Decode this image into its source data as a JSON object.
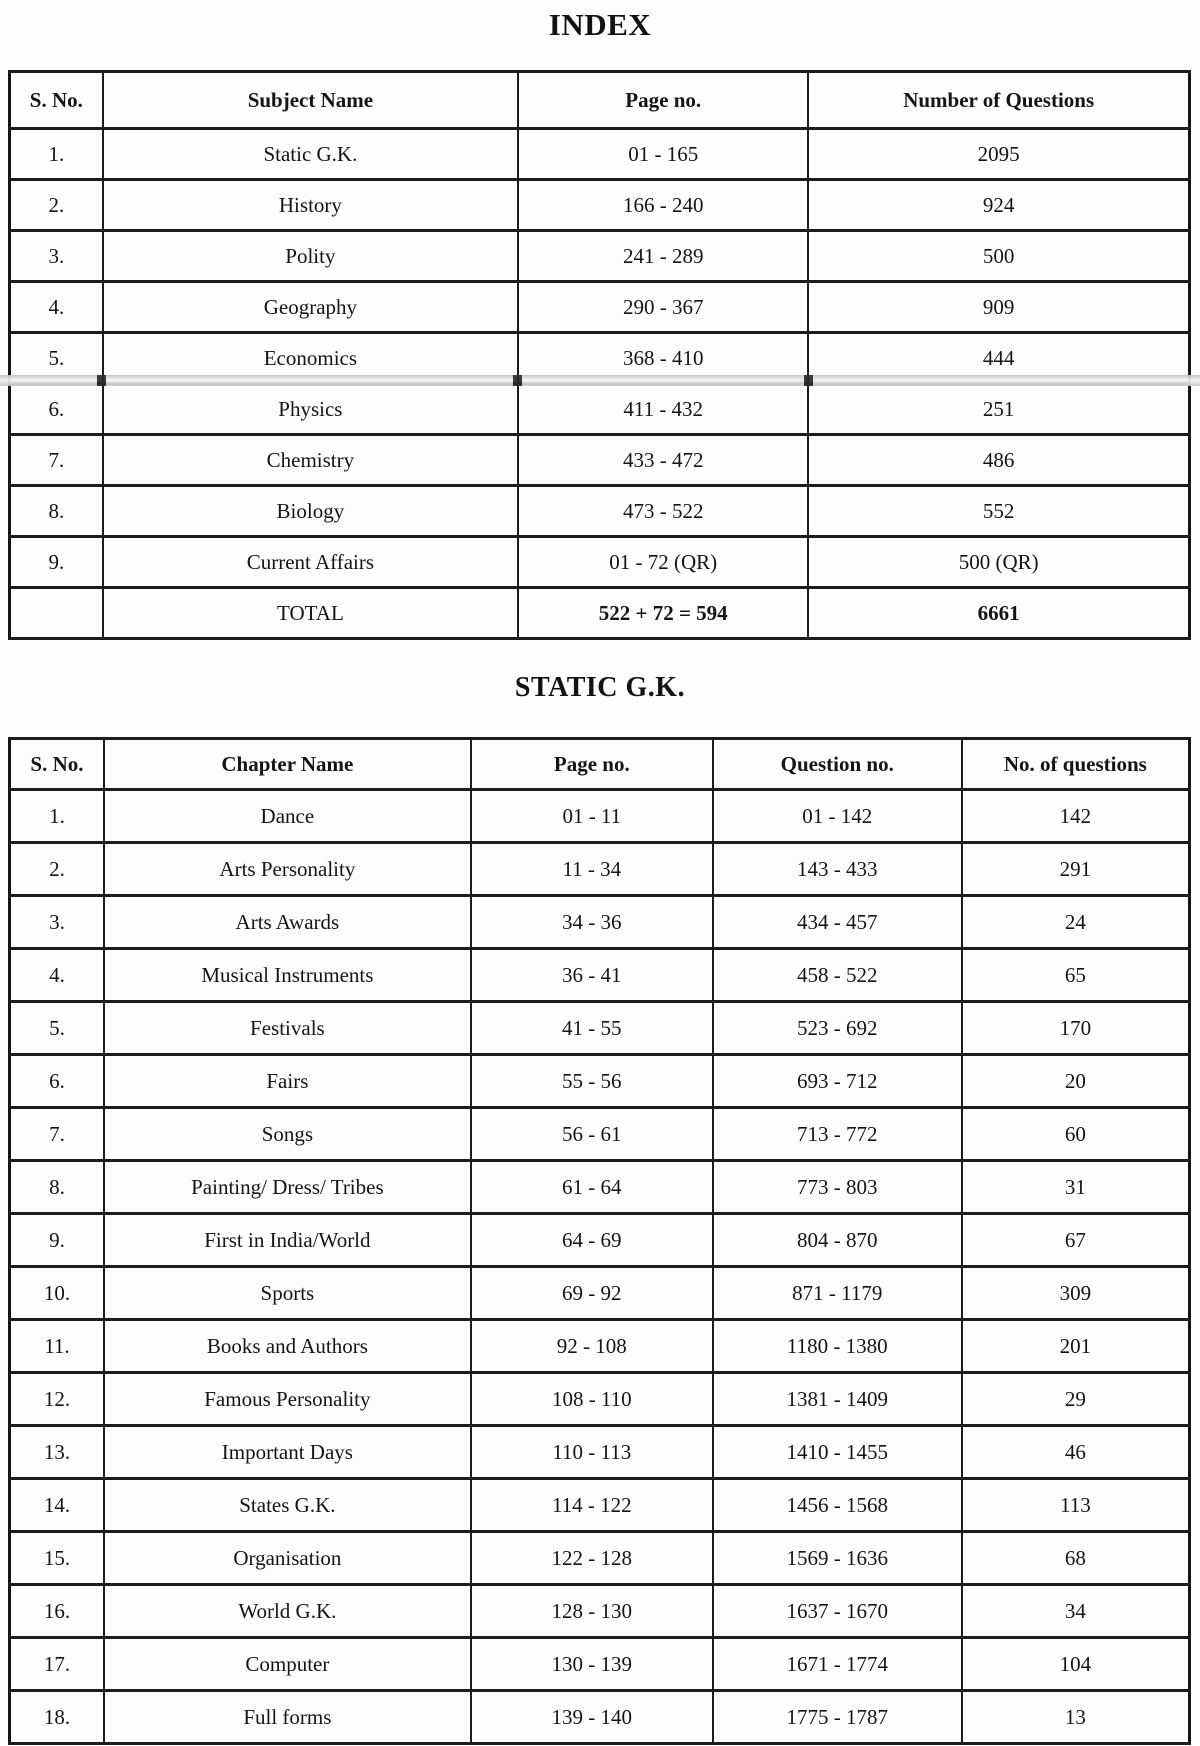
{
  "titles": {
    "index": "INDEX",
    "static_gk": "STATIC G.K."
  },
  "index_table": {
    "headers": [
      "S. No.",
      "Subject Name",
      "Page no.",
      "Number of Questions"
    ],
    "rows": [
      [
        "1.",
        "Static G.K.",
        "01 - 165",
        "2095"
      ],
      [
        "2.",
        "History",
        "166 - 240",
        "924"
      ],
      [
        "3.",
        "Polity",
        "241 - 289",
        "500"
      ],
      [
        "4.",
        "Geography",
        "290 - 367",
        "909"
      ],
      [
        "5.",
        "Economics",
        "368 - 410",
        "444"
      ],
      [
        "6.",
        "Physics",
        "411 - 432",
        "251"
      ],
      [
        "7.",
        "Chemistry",
        "433 - 472",
        "486"
      ],
      [
        "8.",
        "Biology",
        "473 - 522",
        "552"
      ],
      [
        "9.",
        "Current Affairs",
        "01 - 72 (QR)",
        "500 (QR)"
      ]
    ],
    "total_row": [
      "",
      "TOTAL",
      "522 + 72 = 594",
      "6661"
    ]
  },
  "static_gk_table": {
    "headers": [
      "S. No.",
      "Chapter Name",
      "Page no.",
      "Question no.",
      "No. of questions"
    ],
    "rows": [
      [
        "1.",
        "Dance",
        "01 - 11",
        "01 - 142",
        "142"
      ],
      [
        "2.",
        "Arts Personality",
        "11 - 34",
        "143 - 433",
        "291"
      ],
      [
        "3.",
        "Arts Awards",
        "34 - 36",
        "434 - 457",
        "24"
      ],
      [
        "4.",
        "Musical Instruments",
        "36 - 41",
        "458 - 522",
        "65"
      ],
      [
        "5.",
        "Festivals",
        "41 - 55",
        "523 - 692",
        "170"
      ],
      [
        "6.",
        "Fairs",
        "55 - 56",
        "693 - 712",
        "20"
      ],
      [
        "7.",
        "Songs",
        "56 - 61",
        "713 - 772",
        "60"
      ],
      [
        "8.",
        "Painting/ Dress/ Tribes",
        "61 - 64",
        "773 - 803",
        "31"
      ],
      [
        "9.",
        "First in India/World",
        "64 - 69",
        "804 - 870",
        "67"
      ],
      [
        "10.",
        "Sports",
        "69 - 92",
        "871 - 1179",
        "309"
      ],
      [
        "11.",
        "Books and Authors",
        "92 - 108",
        "1180 - 1380",
        "201"
      ],
      [
        "12.",
        "Famous Personality",
        "108 - 110",
        "1381 - 1409",
        "29"
      ],
      [
        "13.",
        "Important Days",
        "110 - 113",
        "1410 - 1455",
        "46"
      ],
      [
        "14.",
        "States G.K.",
        "114 - 122",
        "1456 - 1568",
        "113"
      ],
      [
        "15.",
        "Organisation",
        "122 - 128",
        "1569 - 1636",
        "68"
      ],
      [
        "16.",
        "World G.K.",
        "128 - 130",
        "1637 - 1670",
        "34"
      ],
      [
        "17.",
        "Computer",
        "130 - 139",
        "1671 - 1774",
        "104"
      ],
      [
        "18.",
        "Full forms",
        "139 - 140",
        "1775 - 1787",
        "13"
      ]
    ]
  }
}
